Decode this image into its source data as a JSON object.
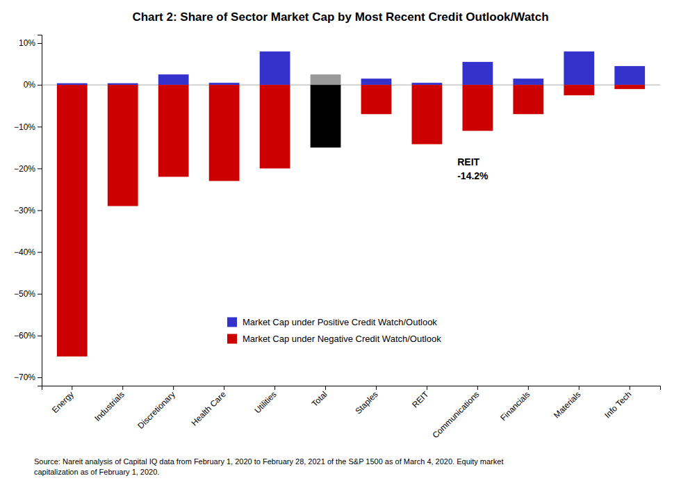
{
  "chart_data": {
    "type": "bar",
    "title": "Chart 2: Share of Sector Market Cap by Most Recent Credit Outlook/Watch",
    "categories": [
      "Energy",
      "Industrials",
      "Discretionary",
      "Health Care",
      "Utilities",
      "Total",
      "Staples",
      "REIT",
      "Communications",
      "Financials",
      "Materials",
      "Info Tech"
    ],
    "series": [
      {
        "name": "Market Cap under Positive Credit Watch/Outlook",
        "color": "#3333CC",
        "colors": [
          "#3333CC",
          "#3333CC",
          "#3333CC",
          "#3333CC",
          "#3333CC",
          "#999999",
          "#3333CC",
          "#3333CC",
          "#3333CC",
          "#3333CC",
          "#3333CC",
          "#3333CC"
        ],
        "values": [
          0.4,
          0.4,
          2.5,
          0.5,
          8.0,
          2.5,
          1.5,
          0.5,
          5.5,
          1.5,
          8.0,
          4.5
        ]
      },
      {
        "name": "Market Cap under Negative Credit Watch/Outlook",
        "color": "#CC0000",
        "colors": [
          "#CC0000",
          "#CC0000",
          "#CC0000",
          "#CC0000",
          "#CC0000",
          "#000000",
          "#CC0000",
          "#CC0000",
          "#CC0000",
          "#CC0000",
          "#CC0000",
          "#CC0000"
        ],
        "values": [
          -65.0,
          -29.0,
          -22.0,
          -23.0,
          -20.0,
          -15.0,
          -7.0,
          -14.2,
          -11.0,
          -7.0,
          -2.5,
          -1.0
        ]
      }
    ],
    "ylim": [
      -72,
      12
    ],
    "yticks": [
      {
        "value": 10,
        "label": "10%"
      },
      {
        "value": 0,
        "label": "0%"
      },
      {
        "value": -10,
        "label": "−10%"
      },
      {
        "value": -20,
        "label": "−20%"
      },
      {
        "value": -30,
        "label": "−30%"
      },
      {
        "value": -40,
        "label": "−40%"
      },
      {
        "value": -50,
        "label": "−50%"
      },
      {
        "value": -60,
        "label": "−60%"
      },
      {
        "value": -70,
        "label": "−70%"
      }
    ],
    "grid": false,
    "legend": "lower left",
    "annotations": [
      "REIT",
      "-14.2%"
    ],
    "source": "Source: Nareit analysis of Capital IQ data from February 1, 2020 to February 28, 2021 of the S&P 1500 as of March 4, 2020. Equity market\ncapitalization as of February 1, 2020."
  }
}
